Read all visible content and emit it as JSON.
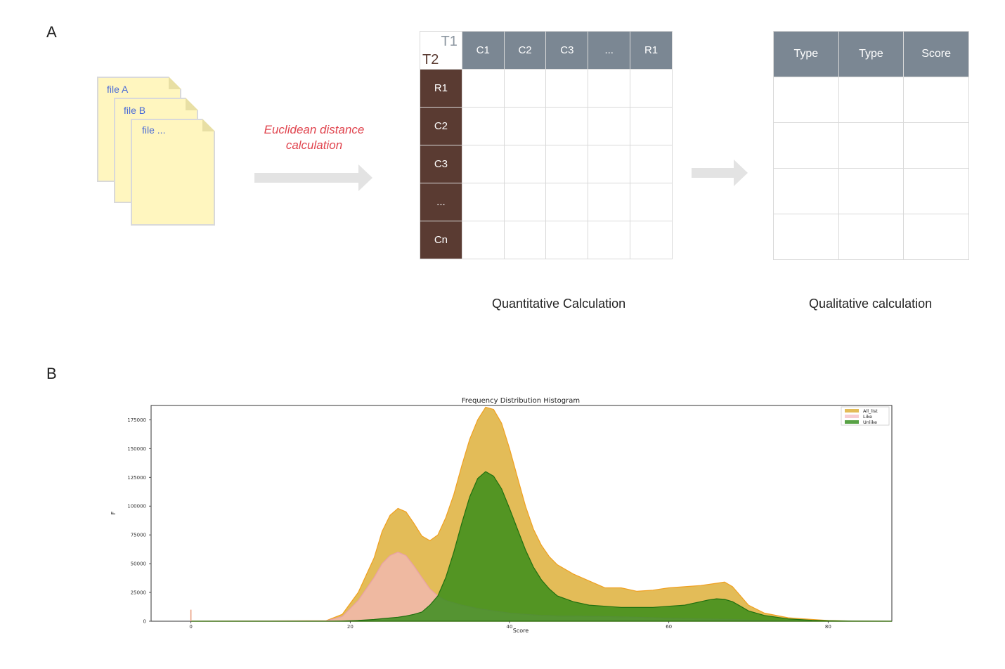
{
  "panels": {
    "a_label": "A",
    "b_label": "B"
  },
  "files": [
    "file A",
    "file B",
    "file ..."
  ],
  "arrow_text": {
    "line1": "Euclidean distance",
    "line2": "calculation"
  },
  "matrix": {
    "corner_t1": "T1",
    "corner_t2": "T2",
    "col_headers": [
      "C1",
      "C2",
      "C3",
      "...",
      "R1"
    ],
    "row_headers": [
      "R1",
      "C2",
      "C3",
      "...",
      "Cn"
    ]
  },
  "result_table": {
    "headers": [
      "Type",
      "Type",
      "Score"
    ],
    "rows": 4
  },
  "captions": {
    "quantitative": "Quantitative Calculation",
    "qualitative": "Qualitative calculation"
  },
  "colors": {
    "header": "#7b8793",
    "row_header": "#5a3b32",
    "all_list": "#daa520",
    "like": "#f4b8c0",
    "unlike": "#2e8b17",
    "arrow": "#e3e3e3",
    "accent_text": "#e0444e"
  },
  "chart_data": {
    "type": "area",
    "title": "Frequency Distribution Histogram",
    "xlabel": "Score",
    "ylabel": "F",
    "xlim": [
      -5,
      88
    ],
    "ylim": [
      0,
      185000
    ],
    "xticks": [
      0,
      20,
      40,
      60,
      80
    ],
    "yticks": [
      0,
      25000,
      50000,
      75000,
      100000,
      125000,
      150000,
      175000
    ],
    "ytick_labels": [
      "0",
      "25000",
      "50000",
      "75000",
      "100000",
      "125000",
      "150000",
      "175000"
    ],
    "legend_placement": "top-right",
    "grid": false,
    "x": [
      0,
      17,
      19,
      21,
      23,
      24,
      25,
      26,
      27,
      28,
      29,
      30,
      31,
      32,
      33,
      34,
      35,
      36,
      37,
      38,
      39,
      40,
      41,
      42,
      43,
      44,
      45,
      46,
      48,
      50,
      52,
      54,
      56,
      58,
      60,
      62,
      64,
      65,
      66,
      67,
      68,
      69,
      70,
      72,
      75,
      78,
      80,
      83,
      88
    ],
    "series": [
      {
        "name": "All_list",
        "color": "#daa520",
        "values": [
          0,
          500,
          6000,
          25000,
          55000,
          78000,
          92000,
          98000,
          95000,
          85000,
          74000,
          70000,
          75000,
          90000,
          110000,
          135000,
          158000,
          175000,
          186000,
          184000,
          172000,
          150000,
          125000,
          100000,
          80000,
          66000,
          56000,
          49000,
          41000,
          35000,
          29000,
          29000,
          26000,
          27000,
          29000,
          30000,
          31000,
          32000,
          33000,
          34000,
          30000,
          22000,
          14000,
          7000,
          3000,
          1500,
          600,
          200,
          0
        ]
      },
      {
        "name": "Like",
        "color": "#f4b8c0",
        "values": [
          0,
          300,
          4000,
          18000,
          38000,
          50000,
          57000,
          60000,
          57000,
          48000,
          38000,
          28000,
          22000,
          18000,
          16000,
          14000,
          12500,
          11000,
          10000,
          9000,
          8000,
          7000,
          6500,
          6000,
          5500,
          5000,
          4800,
          4500,
          4500,
          4200,
          4000,
          3800,
          3500,
          3000,
          2500,
          2200,
          2000,
          1900,
          1800,
          1700,
          1500,
          1300,
          1000,
          600,
          300,
          150,
          100,
          50,
          0
        ]
      },
      {
        "name": "Unlike",
        "color": "#2e8b17",
        "values": [
          0,
          0,
          200,
          700,
          1500,
          2200,
          2800,
          3500,
          4500,
          6000,
          8000,
          14000,
          22000,
          38000,
          60000,
          85000,
          108000,
          124000,
          130000,
          126000,
          115000,
          98000,
          80000,
          62000,
          47000,
          36000,
          28000,
          22000,
          17000,
          14000,
          13000,
          12000,
          12000,
          12000,
          13000,
          14000,
          17000,
          18500,
          19500,
          19000,
          17000,
          13000,
          9000,
          5000,
          2000,
          800,
          400,
          150,
          0
        ]
      }
    ],
    "spike": {
      "x": 0,
      "value": 10000
    }
  }
}
